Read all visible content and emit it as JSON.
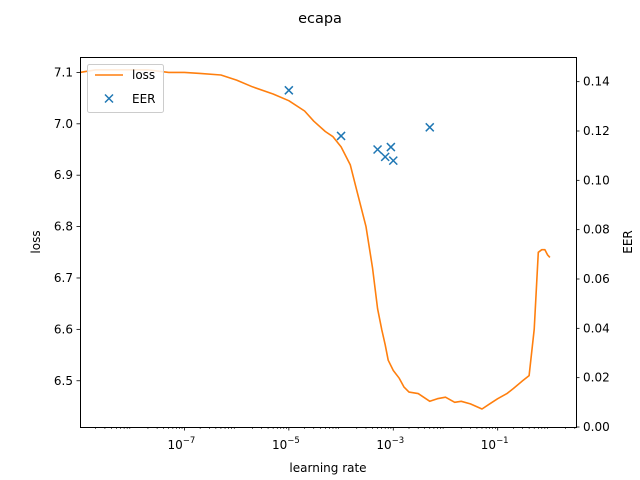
{
  "chart_data": {
    "type": "line",
    "title": "ecapa",
    "xlabel": "learning rate",
    "x_scale": "log",
    "xlim": [
      1e-09,
      3.16
    ],
    "x_ticks": [
      {
        "value": 1e-07,
        "base": "10",
        "exp": "−7"
      },
      {
        "value": 1e-05,
        "base": "10",
        "exp": "−5"
      },
      {
        "value": 0.001,
        "base": "10",
        "exp": "−3"
      },
      {
        "value": 0.1,
        "base": "10",
        "exp": "−1"
      }
    ],
    "y_left": {
      "label": "loss",
      "ylim": [
        6.41,
        7.13
      ],
      "ticks": [
        "6.5",
        "6.6",
        "6.7",
        "6.8",
        "6.9",
        "7.0",
        "7.1"
      ]
    },
    "y_right": {
      "label": "EER",
      "ylim": [
        0.0,
        0.15
      ],
      "ticks": [
        "0.00",
        "0.02",
        "0.04",
        "0.06",
        "0.08",
        "0.10",
        "0.12",
        "0.14"
      ]
    },
    "legend": {
      "placement": "upper left",
      "entries": [
        "loss",
        "EER"
      ]
    },
    "colors": {
      "loss": "#ff7f0e",
      "EER": "#1f77b4"
    },
    "series": [
      {
        "name": "loss",
        "axis": "left",
        "style": "line",
        "x": [
          1e-09,
          2e-09,
          5e-09,
          1e-08,
          2e-08,
          5e-08,
          1e-07,
          2e-07,
          5e-07,
          1e-06,
          2e-06,
          5e-06,
          1e-05,
          2e-05,
          3e-05,
          5e-05,
          7e-05,
          0.0001,
          0.00015,
          0.0002,
          0.0003,
          0.0004,
          0.0005,
          0.0006,
          0.0007,
          0.0008,
          0.001,
          0.0013,
          0.0016,
          0.002,
          0.003,
          0.005,
          0.007,
          0.01,
          0.015,
          0.02,
          0.03,
          0.05,
          0.07,
          0.1,
          0.15,
          0.2,
          0.3,
          0.4,
          0.5,
          0.6,
          0.7,
          0.8,
          0.9,
          1.0
        ],
        "y": [
          7.1,
          7.105,
          7.105,
          7.105,
          7.105,
          7.1,
          7.1,
          7.098,
          7.095,
          7.085,
          7.072,
          7.058,
          7.045,
          7.025,
          7.005,
          6.985,
          6.975,
          6.955,
          6.92,
          6.87,
          6.8,
          6.72,
          6.64,
          6.6,
          6.57,
          6.54,
          6.52,
          6.505,
          6.488,
          6.478,
          6.475,
          6.46,
          6.465,
          6.468,
          6.458,
          6.46,
          6.455,
          6.445,
          6.455,
          6.465,
          6.475,
          6.485,
          6.5,
          6.51,
          6.6,
          6.75,
          6.755,
          6.755,
          6.745,
          6.74
        ]
      },
      {
        "name": "EER",
        "axis": "right",
        "style": "scatter",
        "marker": "x",
        "x": [
          1e-05,
          0.0001,
          0.0005,
          0.0007,
          0.0009,
          0.001,
          0.005
        ],
        "y": [
          0.1365,
          0.118,
          0.1125,
          0.1095,
          0.1135,
          0.108,
          0.1215
        ]
      }
    ]
  }
}
